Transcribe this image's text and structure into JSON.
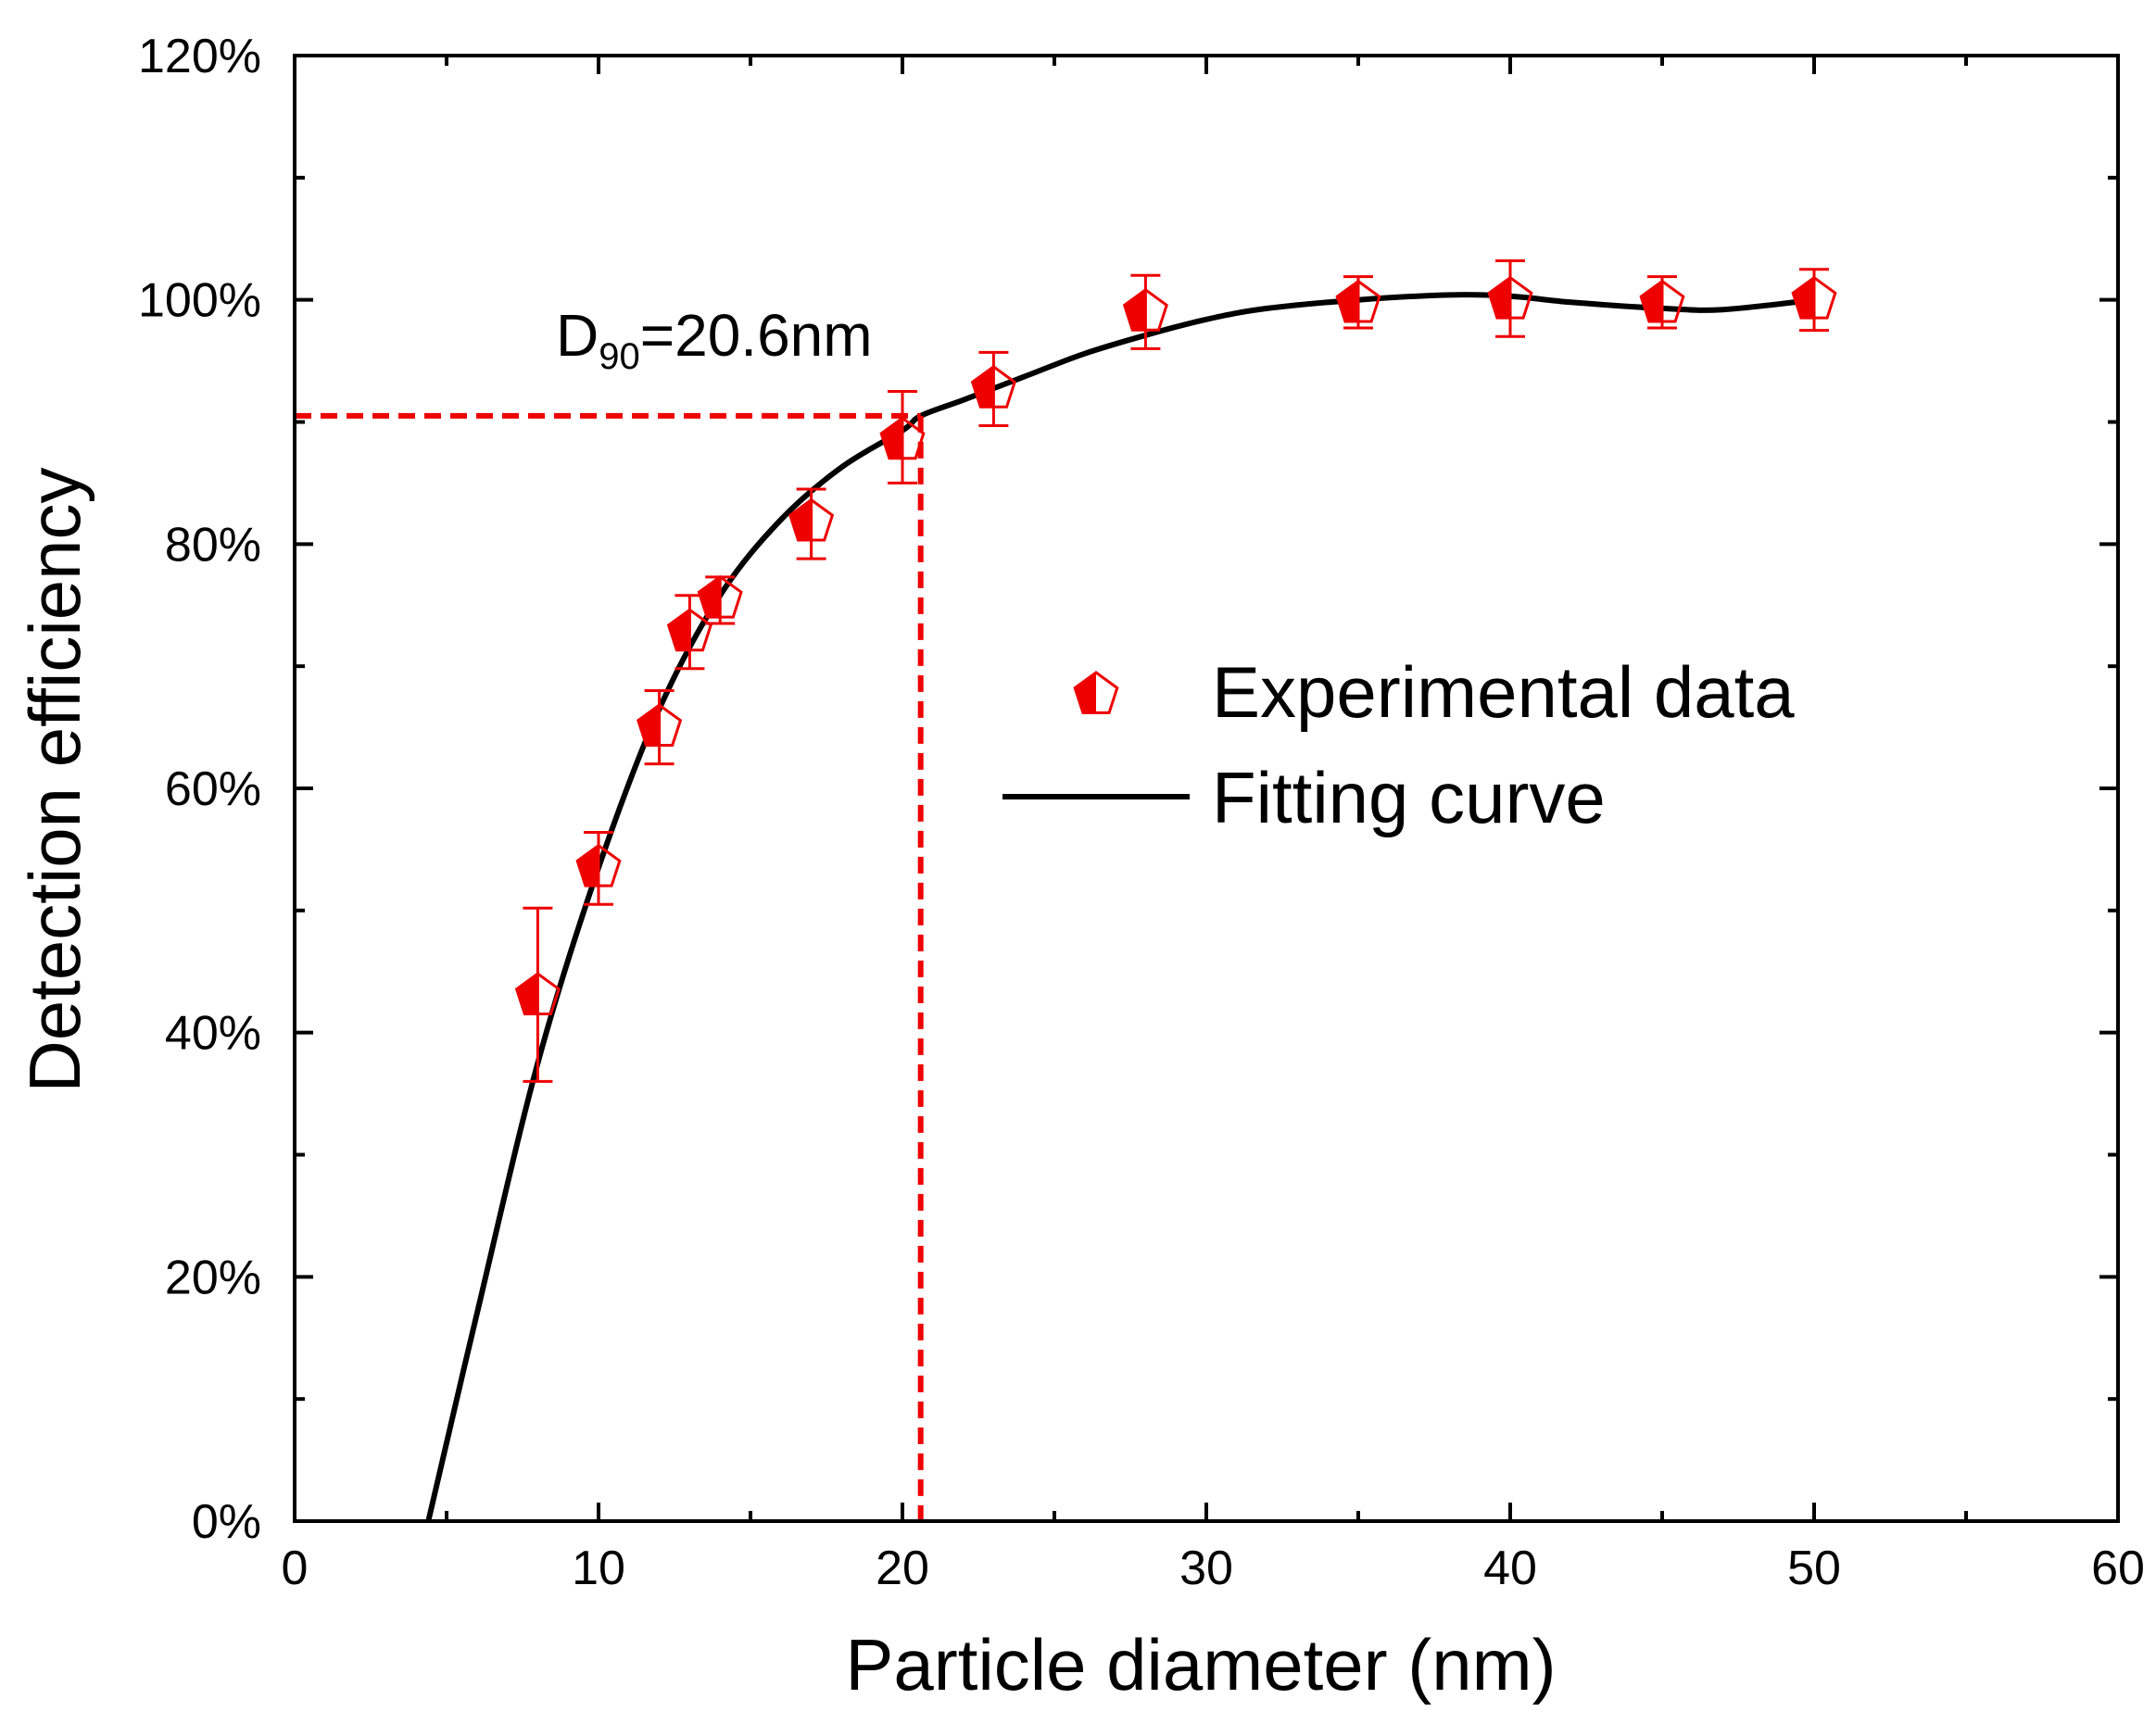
{
  "chart_data": {
    "type": "scatter",
    "xlabel": "Particle diameter (nm)",
    "ylabel": "Detection efficiency",
    "xlim": [
      0,
      60
    ],
    "ylim": [
      0,
      1.2
    ],
    "x_ticks": [
      "0",
      "10",
      "20",
      "30",
      "40",
      "50",
      "60"
    ],
    "y_ticks": [
      "0%",
      "20%",
      "40%",
      "60%",
      "80%",
      "100%",
      "120%"
    ],
    "grid": false,
    "legend_position": "center-right",
    "colors": {
      "data": "#ee0000",
      "fit": "#000000",
      "guide": "#ee0000"
    },
    "series": [
      {
        "name": "Experimental data",
        "marker": "pentagon-half-filled",
        "x": [
          8,
          10,
          12,
          13,
          14,
          17,
          20,
          23,
          28,
          35,
          40,
          45,
          50
        ],
        "y": [
          0.43,
          0.535,
          0.65,
          0.728,
          0.755,
          0.818,
          0.885,
          0.927,
          0.99,
          0.997,
          1.0,
          0.997,
          1.0
        ],
        "err_lower": [
          0.07,
          0.03,
          0.03,
          0.03,
          0.02,
          0.03,
          0.035,
          0.03,
          0.03,
          0.02,
          0.03,
          0.02,
          0.025
        ],
        "err_upper": [
          0.072,
          0.029,
          0.03,
          0.03,
          0.018,
          0.027,
          0.04,
          0.03,
          0.03,
          0.022,
          0.032,
          0.022,
          0.025
        ]
      },
      {
        "name": "Fitting curve",
        "type": "line",
        "x": [
          4.4,
          6,
          8,
          10,
          12,
          14,
          16,
          18,
          20,
          20.6,
          22,
          24,
          26,
          28,
          30,
          32,
          35,
          38,
          40,
          42,
          45,
          47,
          50
        ],
        "y": [
          0,
          0.17,
          0.375,
          0.535,
          0.665,
          0.758,
          0.82,
          0.863,
          0.893,
          0.905,
          0.918,
          0.937,
          0.956,
          0.971,
          0.984,
          0.993,
          1.0,
          1.004,
          1.003,
          0.998,
          0.993,
          0.992,
          1.0
        ]
      }
    ],
    "annotations": {
      "d90_prefix": "D",
      "d90_subscript": "90",
      "d90_suffix": "=20.6nm",
      "guide_point": {
        "x": 20.6,
        "y": 0.905
      }
    }
  }
}
